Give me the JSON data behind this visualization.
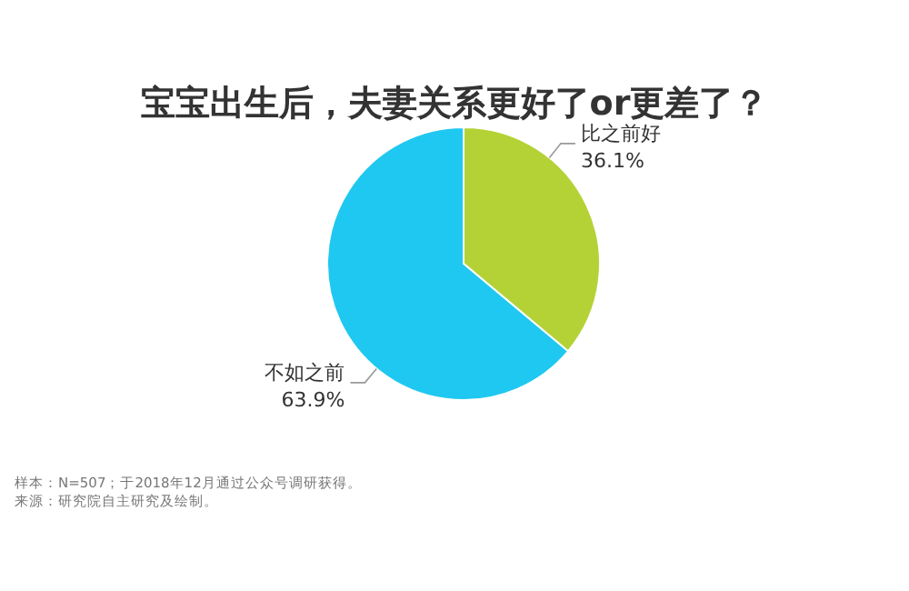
{
  "chart_data": {
    "type": "pie",
    "title": "宝宝出生后，夫妻关系更好了or更差了？",
    "categories": [
      "比之前好",
      "不如之前"
    ],
    "values": [
      36.1,
      63.9
    ],
    "colors": [
      "#b4d236",
      "#1fc8f0"
    ],
    "value_labels": [
      "36.1%",
      "63.9%"
    ],
    "annotations": [
      "样本：N=507；于2018年12月通过公众号调研获得。",
      "来源：研究院自主研究及绘制。"
    ]
  }
}
